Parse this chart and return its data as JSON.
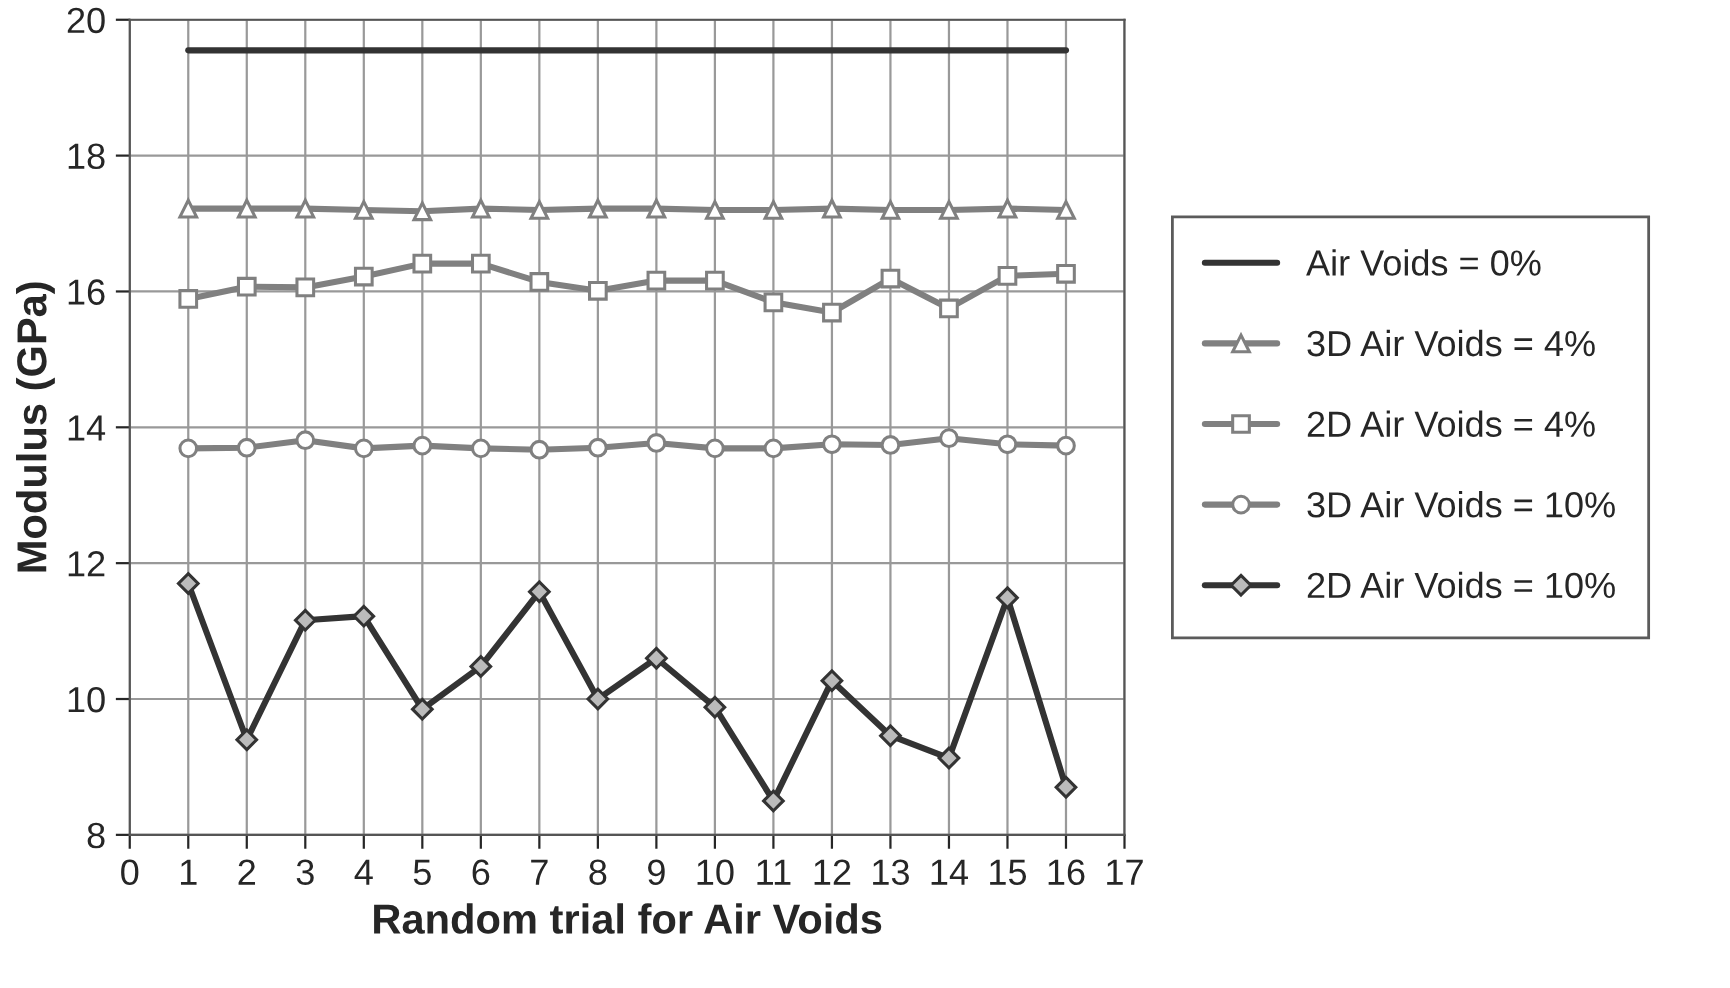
{
  "chart_data": {
    "type": "line",
    "xlabel": "Random trial for Air Voids",
    "ylabel": "Modulus (GPa)",
    "x": [
      1,
      2,
      3,
      4,
      5,
      6,
      7,
      8,
      9,
      10,
      11,
      12,
      13,
      14,
      15,
      16
    ],
    "xlim": [
      0,
      17
    ],
    "xticks": [
      0,
      1,
      2,
      3,
      4,
      5,
      6,
      7,
      8,
      9,
      10,
      11,
      12,
      13,
      14,
      15,
      16,
      17
    ],
    "ylim": [
      8,
      20
    ],
    "yticks": [
      8,
      10,
      12,
      14,
      16,
      18,
      20
    ],
    "grid": true,
    "legend": "right",
    "series": [
      {
        "name": "Air Voids = 0%",
        "color": "#333333",
        "marker": "none",
        "values": [
          19.55,
          19.55,
          19.55,
          19.55,
          19.55,
          19.55,
          19.55,
          19.55,
          19.55,
          19.55,
          19.55,
          19.55,
          19.55,
          19.55,
          19.55,
          19.55
        ]
      },
      {
        "name": "3D Air Voids = 4%",
        "color": "#808080",
        "marker": "triangle",
        "values": [
          17.22,
          17.22,
          17.22,
          17.2,
          17.18,
          17.22,
          17.2,
          17.22,
          17.22,
          17.2,
          17.2,
          17.22,
          17.2,
          17.2,
          17.22,
          17.2
        ]
      },
      {
        "name": "2D Air Voids = 4%",
        "color": "#808080",
        "marker": "square",
        "values": [
          15.89,
          16.07,
          16.06,
          16.22,
          16.41,
          16.41,
          16.14,
          16.01,
          16.16,
          16.16,
          15.84,
          15.69,
          16.19,
          15.75,
          16.23,
          16.26
        ]
      },
      {
        "name": "3D Air Voids = 10%",
        "color": "#808080",
        "marker": "circle",
        "values": [
          13.69,
          13.7,
          13.81,
          13.69,
          13.73,
          13.69,
          13.67,
          13.7,
          13.77,
          13.69,
          13.69,
          13.75,
          13.74,
          13.84,
          13.75,
          13.73
        ]
      },
      {
        "name": "2D Air Voids = 10%",
        "color": "#333333",
        "marker": "diamond",
        "values": [
          11.7,
          9.4,
          11.16,
          11.22,
          9.85,
          10.48,
          11.58,
          10.0,
          10.6,
          9.88,
          8.5,
          10.27,
          9.46,
          9.13,
          11.49,
          8.7
        ]
      }
    ]
  }
}
